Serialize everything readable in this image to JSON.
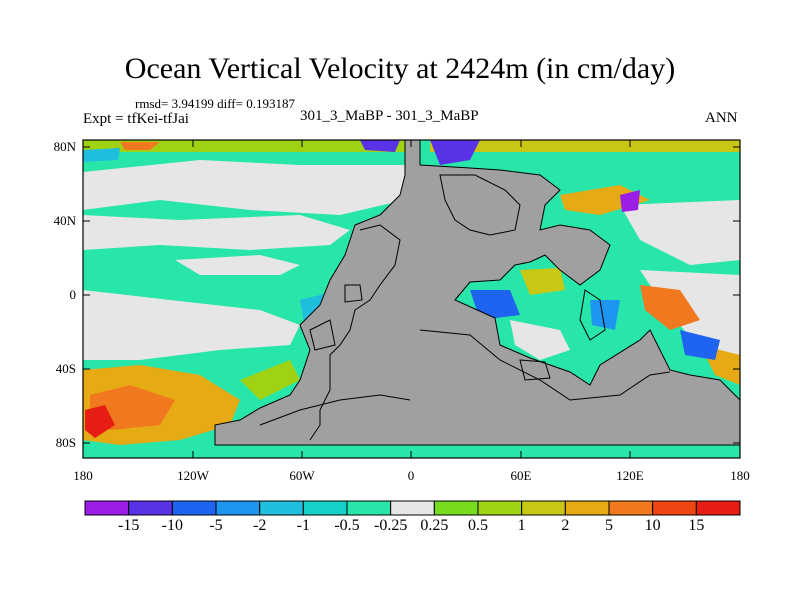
{
  "title": "Ocean Vertical Velocity at 2424m (in cm/day)",
  "stats": "rmsd= 3.94199 diff= 0.193187",
  "experiment": "Expt = tfKei-tfJai",
  "subtitle": "301_3_MaBP - 301_3_MaBP",
  "season": "ANN",
  "lat_labels": [
    "80N",
    "40N",
    "0",
    "40S",
    "80S"
  ],
  "lon_labels": [
    "180",
    "120W",
    "60W",
    "0",
    "60E",
    "120E",
    "180"
  ],
  "colorbar": {
    "labels": [
      "-15",
      "-10",
      "-5",
      "-2",
      "-1",
      "-0.5",
      "-0.25",
      "0.25",
      "0.5",
      "1",
      "2",
      "5",
      "10",
      "15"
    ],
    "colors": [
      "#9a1ee6",
      "#5a32e6",
      "#1e64f0",
      "#1e96f0",
      "#1ebedc",
      "#14d2c8",
      "#28e6aa",
      "#e6e6e6",
      "#78dc1e",
      "#a0d214",
      "#c8c814",
      "#e6aa14",
      "#f0781e",
      "#f04614",
      "#e61e14"
    ]
  },
  "colors": {
    "land": "#a0a0a0",
    "no_change": "#e6e6e6"
  }
}
